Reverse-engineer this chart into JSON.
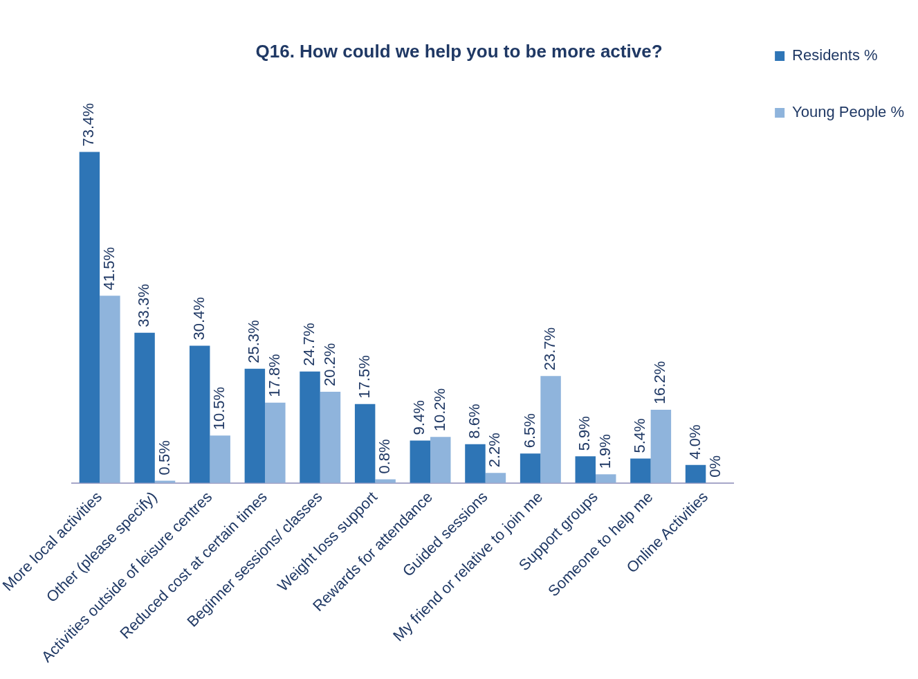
{
  "chart_data": {
    "type": "bar",
    "title": "Q16. How could we help you to be more active?",
    "categories": [
      "More local activities",
      "Other (please specify)",
      "Activities outside of leisure centres",
      "Reduced cost at certain times",
      "Beginner sessions/ classes",
      "Weight loss support",
      "Rewards for attendance",
      "Guided sessions",
      "My friend or relative to join me",
      "Support groups",
      "Someone to help me",
      "Online Activities"
    ],
    "series": [
      {
        "name": "Residents %",
        "color": "#2e75b6",
        "values": [
          73.4,
          33.3,
          30.4,
          25.3,
          24.7,
          17.5,
          9.4,
          8.6,
          6.5,
          5.9,
          5.4,
          4.0
        ],
        "value_labels": [
          "73.4%",
          "33.3%",
          "30.4%",
          "25.3%",
          "24.7%",
          "17.5%",
          "9.4%",
          "8.6%",
          "6.5%",
          "5.9%",
          "5.4%",
          "4.0%"
        ]
      },
      {
        "name": "Young People %",
        "color": "#8fb4dc",
        "values": [
          41.5,
          0.5,
          10.5,
          17.8,
          20.2,
          0.8,
          10.2,
          2.2,
          23.7,
          1.9,
          16.2,
          0
        ],
        "value_labels": [
          "41.5%",
          "0.5%",
          "10.5%",
          "17.8%",
          "20.2%",
          "0.8%",
          "10.2%",
          "2.2%",
          "23.7%",
          "1.9%",
          "16.2%",
          "0%"
        ]
      }
    ],
    "legend": "top right",
    "grid": false,
    "tick_labels": "x"
  }
}
